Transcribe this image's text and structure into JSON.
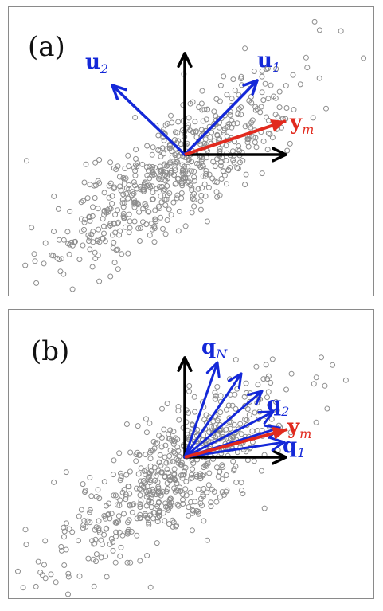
{
  "panels": [
    {
      "id": "a",
      "label": "(a)",
      "vectors": [
        {
          "name": "u",
          "subscript": "2",
          "color": "#1428d8"
        },
        {
          "name": "u",
          "subscript": "1",
          "color": "#1428d8"
        },
        {
          "name": "y",
          "subscript": "m",
          "color": "#e12a1e"
        }
      ]
    },
    {
      "id": "b",
      "label": "(b)",
      "vectors": [
        {
          "name": "q",
          "subscript": "N",
          "color": "#1428d8"
        },
        {
          "name": "q",
          "subscript": "2",
          "color": "#1428d8"
        },
        {
          "name": "y",
          "subscript": "m",
          "color": "#e12a1e"
        },
        {
          "name": "q",
          "subscript": "1",
          "color": "#1428d8"
        }
      ]
    }
  ],
  "colors": {
    "points": "#8c8c8c",
    "axes": "#000000",
    "blue": "#1428d8",
    "red": "#e12a1e"
  }
}
